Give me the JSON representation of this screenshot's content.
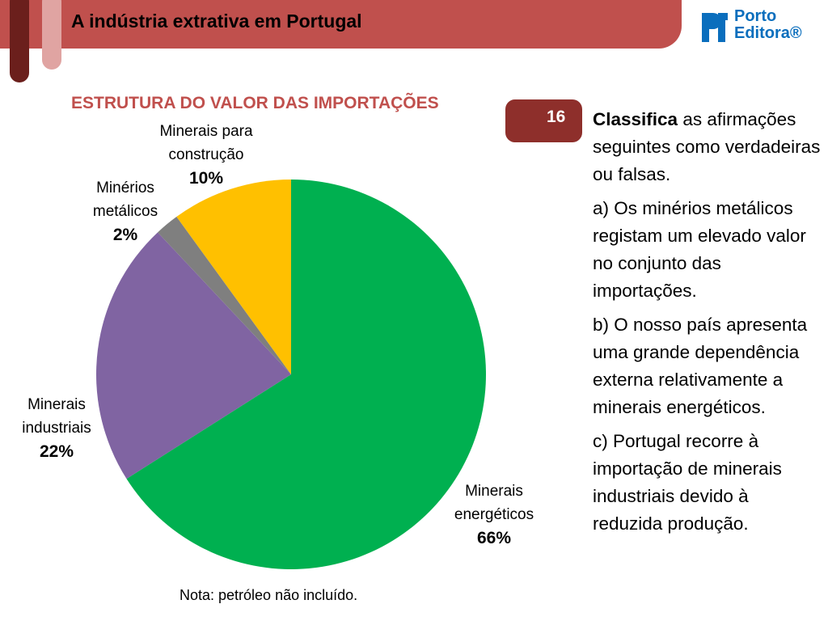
{
  "header": {
    "title": "A indústria extrativa em Portugal",
    "logo_line1": "Porto",
    "logo_line2": "Editora®",
    "colors": {
      "bar": "#c0504d",
      "tab_dark": "#6b1f1c",
      "tab_light": "#e0a4a2",
      "logo": "#0a6ebd"
    }
  },
  "chart_data": {
    "type": "pie",
    "title": "ESTRUTURA DO VALOR DAS IMPORTAÇÕES",
    "categories": [
      "Minerais energéticos",
      "Minerais industriais",
      "Minérios metálicos",
      "Minerais para construção"
    ],
    "values": [
      66,
      22,
      2,
      10
    ],
    "value_labels": [
      "66%",
      "22%",
      "2%",
      "10%"
    ],
    "colors": [
      "#00b050",
      "#8064a2",
      "#7f7f7f",
      "#ffc000"
    ],
    "start_angle_deg": 0,
    "direction": "clockwise"
  },
  "labels": {
    "energeticos": {
      "name_1": "Minerais",
      "name_2": "energéticos",
      "pct": "66%"
    },
    "industriais": {
      "name_1": "Minerais",
      "name_2": "industriais",
      "pct": "22%"
    },
    "metalicos": {
      "name_1": "Minérios",
      "name_2": "metálicos",
      "pct": "2%"
    },
    "construcao": {
      "name_1": "Minerais para",
      "name_2": "construção",
      "pct": "10%"
    }
  },
  "note": "Nota: petróleo não incluído.",
  "exercise": {
    "number": "16",
    "intro_bold": "Classifica",
    "intro_rest": " as afirmações seguintes como verdadeiras ou falsas.",
    "a": "a) Os minérios metálicos registam um elevado valor no conjunto das importações.",
    "b": "b) O nosso país apresenta uma grande dependência externa relativamente a minerais energéticos.",
    "c": "c) Portugal recorre à importação de minerais industriais devido à reduzida produção."
  }
}
